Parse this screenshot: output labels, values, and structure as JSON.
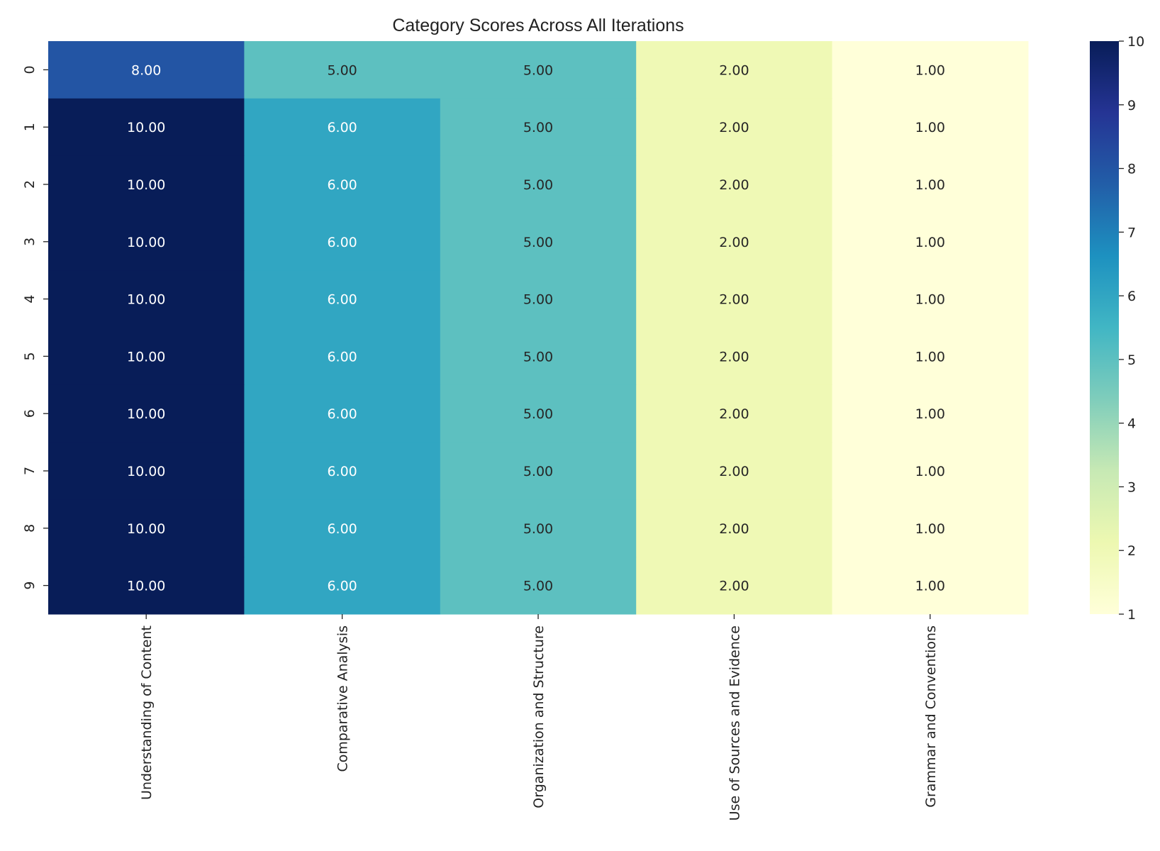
{
  "chart_data": {
    "type": "heatmap",
    "title": "Category Scores Across All Iterations",
    "rows": [
      "0",
      "1",
      "2",
      "3",
      "4",
      "5",
      "6",
      "7",
      "8",
      "9"
    ],
    "columns": [
      "Understanding of Content",
      "Comparative Analysis",
      "Organization and Structure",
      "Use of Sources and Evidence",
      "Grammar and Conventions"
    ],
    "values": [
      [
        8,
        5,
        5,
        2,
        1
      ],
      [
        10,
        6,
        5,
        2,
        1
      ],
      [
        10,
        6,
        5,
        2,
        1
      ],
      [
        10,
        6,
        5,
        2,
        1
      ],
      [
        10,
        6,
        5,
        2,
        1
      ],
      [
        10,
        6,
        5,
        2,
        1
      ],
      [
        10,
        6,
        5,
        2,
        1
      ],
      [
        10,
        6,
        5,
        2,
        1
      ],
      [
        10,
        6,
        5,
        2,
        1
      ],
      [
        10,
        6,
        5,
        2,
        1
      ]
    ],
    "annotation_format": "0.00",
    "colormap": "YlGnBu",
    "colormap_stops": [
      "#ffffd9",
      "#edf8b1",
      "#c7e9b4",
      "#7fcdbb",
      "#41b6c4",
      "#1d91c0",
      "#225ea8",
      "#253494",
      "#081d58"
    ],
    "colorbar": {
      "range": [
        1,
        10
      ],
      "ticks": [
        "1",
        "2",
        "3",
        "4",
        "5",
        "6",
        "7",
        "8",
        "9",
        "10"
      ]
    }
  }
}
